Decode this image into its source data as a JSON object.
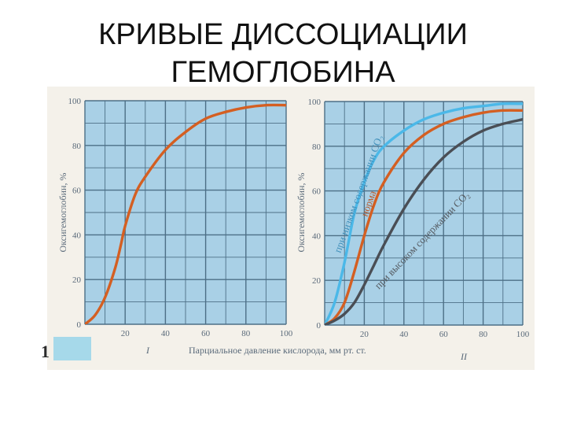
{
  "slide": {
    "title_line1": "КРИВЫЕ ДИССОЦИАЦИИ",
    "title_line2": "ГЕМОГЛОБИНА",
    "figure_number": "1"
  },
  "colors": {
    "panel_bg": "#a9d0e6",
    "grid": "#4d6f86",
    "orange": "#d45f22",
    "light_blue": "#4bb8e8",
    "dark_gray": "#4a4e55",
    "caption_box": "#a6d9ea"
  },
  "chart_data": [
    {
      "type": "line",
      "panel_label": "I",
      "ylabel": "Оксигемоглобин, %",
      "xlabel": "Парциальное давление кислорода, мм рт. ст.",
      "xlim": [
        0,
        100
      ],
      "ylim": [
        0,
        100
      ],
      "x_ticks": [
        "20",
        "40",
        "60",
        "80",
        "100"
      ],
      "y_ticks": [
        "0",
        "20",
        "40",
        "60",
        "80",
        "100"
      ],
      "grid": true,
      "series": [
        {
          "color": "#d45f22",
          "x": [
            0,
            5,
            10,
            15,
            18,
            20,
            25,
            30,
            40,
            50,
            60,
            70,
            80,
            90,
            100
          ],
          "y": [
            0,
            4,
            12,
            25,
            36,
            44,
            58,
            66,
            78,
            86,
            92,
            95,
            97,
            98,
            98
          ]
        }
      ]
    },
    {
      "type": "line",
      "panel_label": "II",
      "ylabel": "Оксигемоглобин, %",
      "xlim": [
        0,
        100
      ],
      "ylim": [
        0,
        100
      ],
      "x_ticks": [
        "20",
        "40",
        "60",
        "80",
        "100"
      ],
      "y_ticks": [
        "0",
        "20",
        "40",
        "60",
        "80",
        "100"
      ],
      "grid": true,
      "annotations": [
        {
          "text": "при низком содержании CO₂",
          "series": 0
        },
        {
          "text": "норма",
          "series": 1
        },
        {
          "text": "при высоком содержании CO₂",
          "series": 2
        }
      ],
      "series": [
        {
          "color": "#4bb8e8",
          "x": [
            0,
            5,
            10,
            15,
            20,
            25,
            30,
            40,
            50,
            60,
            70,
            80,
            90,
            100
          ],
          "y": [
            0,
            10,
            28,
            50,
            64,
            74,
            80,
            87,
            92,
            95,
            97,
            98,
            99,
            99
          ]
        },
        {
          "color": "#d45f22",
          "x": [
            0,
            5,
            10,
            15,
            20,
            25,
            30,
            40,
            50,
            60,
            70,
            80,
            90,
            100
          ],
          "y": [
            0,
            3,
            10,
            24,
            40,
            54,
            64,
            77,
            85,
            90,
            93,
            95,
            96,
            96
          ]
        },
        {
          "color": "#4a4e55",
          "x": [
            0,
            5,
            10,
            15,
            20,
            25,
            30,
            40,
            50,
            60,
            70,
            80,
            90,
            100
          ],
          "y": [
            0,
            2,
            5,
            10,
            18,
            27,
            36,
            52,
            65,
            75,
            82,
            87,
            90,
            92
          ]
        }
      ]
    }
  ]
}
